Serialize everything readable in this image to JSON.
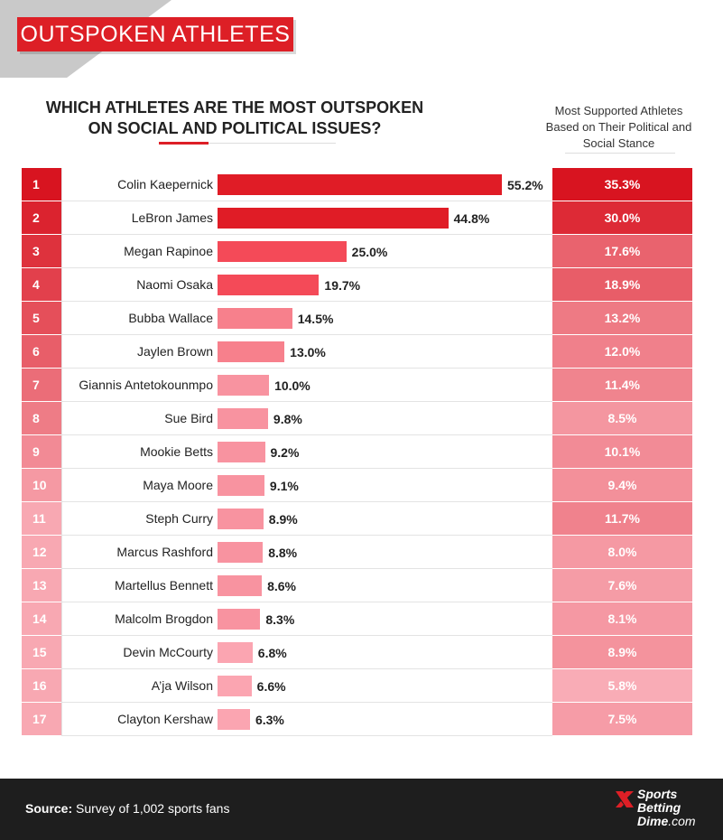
{
  "banner": "OUTSPOKEN ATHLETES",
  "question_line1": "WHICH ATHLETES ARE THE MOST OUTSPOKEN",
  "question_line2": "ON SOCIAL AND POLITICAL ISSUES?",
  "right_header": [
    "Most Supported Athletes",
    "Based on Their Political and",
    "Social Stance"
  ],
  "footer": {
    "source_label": "Source:",
    "source_text": " Survey of 1,002 sports fans"
  },
  "logo": {
    "line1": "Sports",
    "line2": "Betting",
    "line3_a": "Dime",
    "line3_b": ".com"
  },
  "colors": {
    "brand_red": "#dd1f26",
    "footer_bg": "#1e1e1e"
  },
  "chart_data": {
    "type": "bar",
    "orientation": "horizontal",
    "title": "WHICH ATHLETES ARE THE MOST OUTSPOKEN ON SOCIAL AND POLITICAL ISSUES?",
    "ranks": [
      "1",
      "2",
      "3",
      "4",
      "5",
      "6",
      "7",
      "8",
      "9",
      "10",
      "11",
      "12",
      "13",
      "14",
      "15",
      "16",
      "17"
    ],
    "categories": [
      "Colin Kaepernick",
      "LeBron James",
      "Megan Rapinoe",
      "Naomi Osaka",
      "Bubba Wallace",
      "Jaylen Brown",
      "Giannis Antetokounmpo",
      "Sue Bird",
      "Mookie Betts",
      "Maya Moore",
      "Steph Curry",
      "Marcus Rashford",
      "Martellus Bennett",
      "Malcolm Brogdon",
      "Devin McCourty",
      "A’ja Wilson",
      "Clayton Kershaw"
    ],
    "values": [
      55.2,
      44.8,
      25.0,
      19.7,
      14.5,
      13.0,
      10.0,
      9.8,
      9.2,
      9.1,
      8.9,
      8.8,
      8.6,
      8.3,
      6.8,
      6.6,
      6.3
    ],
    "value_labels": [
      "55.2%",
      "44.8%",
      "25.0%",
      "19.7%",
      "14.5%",
      "13.0%",
      "10.0%",
      "9.8%",
      "9.2%",
      "9.1%",
      "8.9%",
      "8.8%",
      "8.6%",
      "8.3%",
      "6.8%",
      "6.6%",
      "6.3%"
    ],
    "secondary_series": {
      "name": "Most Supported Athletes Based on Their Political and Social Stance",
      "values": [
        35.3,
        30.0,
        17.6,
        18.9,
        13.2,
        12.0,
        11.4,
        8.5,
        10.1,
        9.4,
        11.7,
        8.0,
        7.6,
        8.1,
        8.9,
        5.8,
        7.5
      ],
      "value_labels": [
        "35.3%",
        "30.0%",
        "17.6%",
        "18.9%",
        "13.2%",
        "12.0%",
        "11.4%",
        "8.5%",
        "10.1%",
        "9.4%",
        "11.7%",
        "8.0%",
        "7.6%",
        "8.1%",
        "8.9%",
        "5.8%",
        "7.5%"
      ]
    },
    "grid": false
  }
}
